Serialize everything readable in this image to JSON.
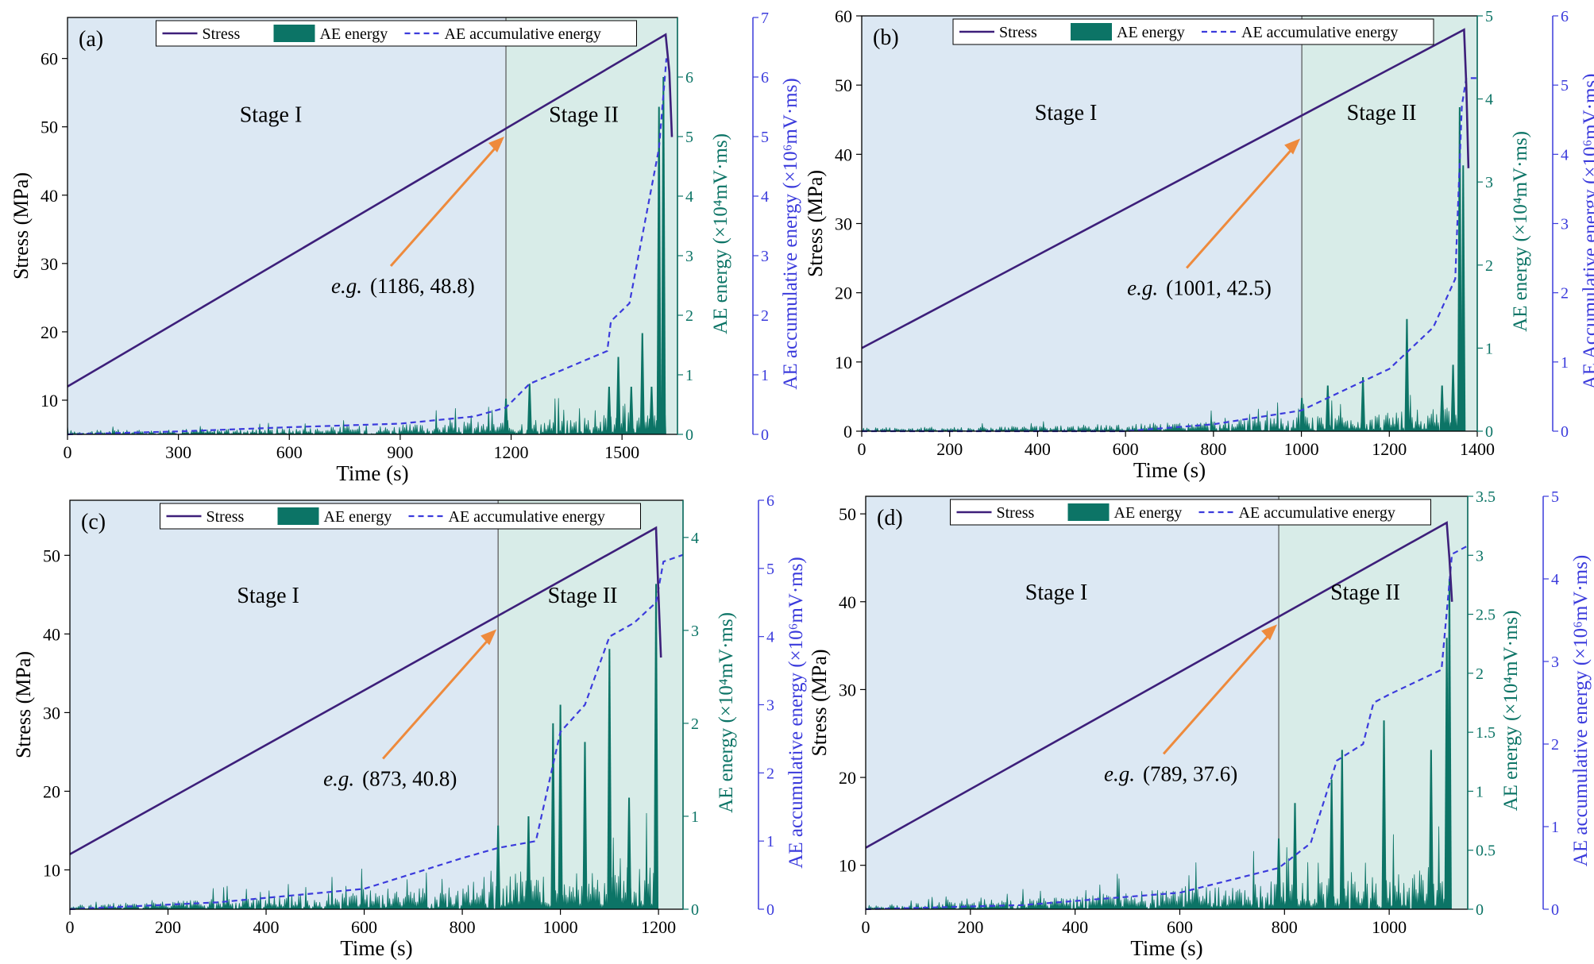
{
  "colors": {
    "stress": "#3d1f7a",
    "ae_energy": "#0c7466",
    "ae_accumulative": "#3b3bdc",
    "stage1_bg": "#dce8f3",
    "stage2_bg": "#d8ece8",
    "arrow": "#ee8a3c",
    "stage_line": "#555555"
  },
  "chart_data": [
    {
      "type": "line",
      "panel_label": "(a)",
      "xlabel": "Time (s)",
      "ylabel": "Stress (MPa)",
      "y2label": "AE energy (×10⁴mV·ms)",
      "y3label": "AE accumulative energy (×10⁶mV·ms)",
      "xlim": [
        0,
        1650
      ],
      "ylim": [
        5,
        66
      ],
      "y2lim": [
        0,
        7
      ],
      "y3lim": [
        0,
        7
      ],
      "xticks": [
        0,
        300,
        600,
        900,
        1200,
        1500
      ],
      "yticks": [
        10,
        20,
        30,
        40,
        50,
        60
      ],
      "y2ticks": [
        0,
        1,
        2,
        3,
        4,
        5,
        6
      ],
      "y3ticks": [
        0,
        1,
        2,
        3,
        4,
        5,
        6,
        7
      ],
      "stage_boundary": 1186,
      "stage_labels": [
        "Stage I",
        "Stage II"
      ],
      "legend": [
        "Stress",
        "AE energy",
        "AE accumulative energy"
      ],
      "legend_position": "top",
      "annotation": {
        "prefix": "e.g.",
        "text": "(1186, 48.8)",
        "x": 1186,
        "y": 48.8
      },
      "stress": {
        "x": [
          0,
          1618,
          1628,
          1635
        ],
        "y": [
          12,
          63.5,
          58,
          48.5
        ]
      },
      "ae_energy": {
        "x": [
          1186,
          1250,
          1465,
          1490,
          1525,
          1555,
          1580,
          1600,
          1612
        ],
        "y": [
          0.6,
          0.85,
          0.8,
          1.3,
          0.8,
          1.7,
          0.8,
          5.5,
          6.0
        ]
      },
      "ae_accumulative": {
        "x": [
          0,
          300,
          600,
          900,
          1100,
          1186,
          1250,
          1460,
          1470,
          1520,
          1560,
          1600,
          1620,
          1635
        ],
        "y": [
          0,
          0.05,
          0.12,
          0.18,
          0.3,
          0.45,
          0.85,
          1.4,
          1.9,
          2.2,
          3.5,
          4.8,
          6.3,
          6.3
        ]
      }
    },
    {
      "type": "line",
      "panel_label": "(b)",
      "xlabel": "Time (s)",
      "ylabel": "Stress (MPa)",
      "y2label": "AE energy (×10⁴mV·ms)",
      "y3label": "AE Accumulative energy (×10⁶mV·ms)",
      "xlim": [
        0,
        1400
      ],
      "ylim": [
        0,
        60
      ],
      "y2lim": [
        0,
        5
      ],
      "y3lim": [
        0,
        6
      ],
      "xticks": [
        0,
        200,
        400,
        600,
        800,
        1000,
        1200,
        1400
      ],
      "yticks": [
        0,
        10,
        20,
        30,
        40,
        50,
        60
      ],
      "y2ticks": [
        0,
        1,
        2,
        3,
        4,
        5
      ],
      "y3ticks": [
        0,
        1,
        2,
        3,
        4,
        5,
        6
      ],
      "stage_boundary": 1001,
      "stage_labels": [
        "Stage I",
        "Stage II"
      ],
      "legend": [
        "Stress",
        "AE energy",
        "AE accumulative energy"
      ],
      "legend_position": "top",
      "annotation": {
        "prefix": "e.g.",
        "text": "(1001, 42.5)",
        "x": 1001,
        "y": 42.5
      },
      "stress": {
        "x": [
          0,
          1370,
          1375,
          1380
        ],
        "y": [
          12,
          58,
          50,
          38
        ]
      },
      "ae_energy": {
        "x": [
          1001,
          1060,
          1140,
          1240,
          1320,
          1345,
          1360,
          1368
        ],
        "y": [
          0.4,
          0.55,
          0.65,
          1.35,
          0.55,
          0.8,
          3.9,
          3.2
        ]
      },
      "ae_accumulative": {
        "x": [
          0,
          600,
          800,
          1000,
          1100,
          1200,
          1250,
          1300,
          1350,
          1365,
          1375,
          1400
        ],
        "y": [
          0,
          0,
          0.1,
          0.3,
          0.6,
          0.9,
          1.2,
          1.5,
          2.2,
          4.7,
          5.1,
          5.1
        ]
      }
    },
    {
      "type": "line",
      "panel_label": "(c)",
      "xlabel": "Time (s)",
      "ylabel": "Stress (MPa)",
      "y2label": "AE energy (×10⁴mV·ms)",
      "y3label": "AE accumulative energy (×10⁶mV·ms)",
      "xlim": [
        0,
        1250
      ],
      "ylim": [
        5,
        57
      ],
      "y2lim": [
        0,
        4.4
      ],
      "y3lim": [
        0,
        6
      ],
      "xticks": [
        0,
        200,
        400,
        600,
        800,
        1000,
        1200
      ],
      "yticks": [
        10,
        20,
        30,
        40,
        50
      ],
      "y2ticks": [
        0,
        1,
        2,
        3,
        4
      ],
      "y3ticks": [
        0,
        1,
        2,
        3,
        4,
        5,
        6
      ],
      "stage_boundary": 873,
      "stage_labels": [
        "Stage I",
        "Stage II"
      ],
      "legend": [
        "Stress",
        "AE energy",
        "AE accumulative energy"
      ],
      "legend_position": "top",
      "annotation": {
        "prefix": "e.g.",
        "text": "(873, 40.8)",
        "x": 873,
        "y": 40.8
      },
      "stress": {
        "x": [
          0,
          1195,
          1200,
          1205
        ],
        "y": [
          12,
          53.5,
          45,
          37
        ]
      },
      "ae_energy": {
        "x": [
          873,
          935,
          985,
          1000,
          1050,
          1100,
          1140,
          1195
        ],
        "y": [
          0.9,
          1.0,
          2.0,
          2.2,
          1.8,
          2.8,
          1.2,
          3.5
        ]
      },
      "ae_accumulative": {
        "x": [
          0,
          300,
          600,
          800,
          873,
          950,
          1000,
          1050,
          1100,
          1150,
          1195,
          1210,
          1250
        ],
        "y": [
          0,
          0.1,
          0.3,
          0.75,
          0.9,
          1.0,
          2.6,
          3.0,
          4.0,
          4.2,
          4.5,
          5.1,
          5.2
        ]
      }
    },
    {
      "type": "line",
      "panel_label": "(d)",
      "xlabel": "Time (s)",
      "ylabel": "Stress (MPa)",
      "y2label": "AE energy (×10⁴mV·ms)",
      "y3label": "AE accumulative energy (×10⁶mV·ms)",
      "xlim": [
        0,
        1150
      ],
      "ylim": [
        5,
        52
      ],
      "y2lim": [
        0,
        3.5
      ],
      "y3lim": [
        0,
        5
      ],
      "xticks": [
        0,
        200,
        400,
        600,
        800,
        1000
      ],
      "yticks": [
        10,
        20,
        30,
        40,
        50
      ],
      "y2ticks": [
        0,
        0.5,
        1.0,
        1.5,
        2.0,
        2.5,
        3.0,
        3.5
      ],
      "y3ticks": [
        0,
        1,
        2,
        3,
        4,
        5
      ],
      "stage_boundary": 789,
      "stage_labels": [
        "Stage I",
        "Stage II"
      ],
      "legend": [
        "Stress",
        "AE energy",
        "AE accumulative energy"
      ],
      "legend_position": "top",
      "annotation": {
        "prefix": "e.g.",
        "text": "(789, 37.6)",
        "x": 789,
        "y": 37.6
      },
      "stress": {
        "x": [
          0,
          1110,
          1115,
          1120
        ],
        "y": [
          12,
          49,
          45,
          40
        ]
      },
      "ae_energy": {
        "x": [
          789,
          820,
          890,
          910,
          990,
          1080,
          1110,
          1115
        ],
        "y": [
          0.6,
          0.9,
          1.1,
          1.35,
          1.6,
          1.35,
          2.3,
          2.8
        ]
      },
      "ae_accumulative": {
        "x": [
          0,
          300,
          600,
          789,
          850,
          900,
          950,
          970,
          1000,
          1100,
          1110,
          1120,
          1150
        ],
        "y": [
          0,
          0.05,
          0.2,
          0.5,
          0.8,
          1.8,
          2.0,
          2.5,
          2.6,
          2.9,
          3.6,
          4.3,
          4.4
        ]
      }
    }
  ]
}
